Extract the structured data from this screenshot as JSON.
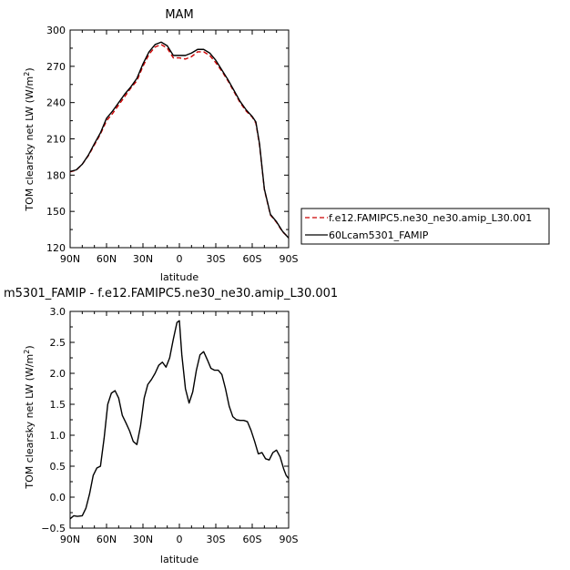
{
  "chart_data": [
    {
      "type": "line",
      "title": "MAM",
      "xlabel": "latitude",
      "ylabel": "TOM clearsky net LW (W/m²)",
      "xlim": [
        90,
        -90
      ],
      "ylim": [
        120,
        300
      ],
      "x_ticks": [
        90,
        60,
        30,
        0,
        -30,
        -60,
        -90
      ],
      "x_tick_labels": [
        "90N",
        "60N",
        "30N",
        "0",
        "30S",
        "60S",
        "90S"
      ],
      "y_ticks": [
        120,
        150,
        180,
        210,
        240,
        270,
        300
      ],
      "y_tick_labels": [
        "120",
        "150",
        "180",
        "210",
        "240",
        "270",
        "300"
      ],
      "grid": false,
      "legend": "right",
      "series": [
        {
          "name": "f.e12.FAMIPC5.ne30_ne30.amip_L30.001",
          "color": "#cc0000",
          "style": "dashed",
          "x": [
            90,
            85,
            80,
            75,
            70,
            65,
            60,
            55,
            50,
            45,
            40,
            35,
            30,
            25,
            20,
            15,
            10,
            5,
            0,
            -5,
            -10,
            -15,
            -20,
            -25,
            -30,
            -35,
            -40,
            -45,
            -50,
            -55,
            -60,
            -63,
            -66,
            -70,
            -75,
            -80,
            -85,
            -90
          ],
          "values": [
            182.7,
            184,
            189,
            196,
            205,
            214,
            225,
            231,
            238,
            245,
            252,
            258,
            270,
            280,
            286,
            288,
            285,
            277,
            277,
            276,
            278,
            282,
            282,
            279,
            273,
            266,
            258,
            249,
            240,
            233,
            228,
            223,
            205,
            168,
            147,
            141,
            133,
            128.5
          ]
        },
        {
          "name": "60Lcam5301_FAMIP",
          "color": "#000000",
          "style": "solid",
          "x": [
            90,
            85,
            80,
            75,
            70,
            65,
            60,
            55,
            50,
            45,
            40,
            35,
            30,
            25,
            20,
            15,
            10,
            5,
            0,
            -5,
            -10,
            -15,
            -20,
            -25,
            -30,
            -35,
            -40,
            -45,
            -50,
            -55,
            -60,
            -63,
            -66,
            -70,
            -75,
            -80,
            -85,
            -90
          ],
          "values": [
            183,
            184.3,
            189,
            196.5,
            206,
            215,
            227,
            233,
            240,
            247,
            253,
            260,
            272,
            282,
            288,
            290,
            287,
            279,
            279,
            279,
            281,
            284,
            284,
            281,
            275,
            267,
            259,
            250,
            241,
            234,
            228.5,
            224,
            206,
            168.5,
            147.5,
            141.5,
            133.5,
            128
          ]
        }
      ]
    },
    {
      "type": "line",
      "title": "m5301_FAMIP - f.e12.FAMIPC5.ne30_ne30.amip_L30.001",
      "xlabel": "latitude",
      "ylabel": "TOM clearsky net LW (W/m²)",
      "xlim": [
        90,
        -90
      ],
      "ylim": [
        -0.5,
        3.0
      ],
      "x_ticks": [
        90,
        60,
        30,
        0,
        -30,
        -60,
        -90
      ],
      "x_tick_labels": [
        "90N",
        "60N",
        "30N",
        "0",
        "30S",
        "60S",
        "90S"
      ],
      "y_ticks": [
        -0.5,
        0.0,
        0.5,
        1.0,
        1.5,
        2.0,
        2.5,
        3.0
      ],
      "y_tick_labels": [
        "−0.5",
        "0.0",
        "0.5",
        "1.0",
        "1.5",
        "2.0",
        "2.5",
        "3.0"
      ],
      "grid": false,
      "series": [
        {
          "color": "#000000",
          "style": "solid",
          "x": [
            90,
            87,
            84,
            80,
            77,
            74,
            71,
            68,
            65,
            62,
            59,
            56,
            53,
            50,
            47,
            44,
            41,
            38,
            35,
            32,
            29,
            26,
            23,
            20,
            17,
            14,
            11,
            8,
            5,
            2,
            0,
            -2,
            -5,
            -8,
            -11,
            -14,
            -17,
            -20,
            -23,
            -26,
            -29,
            -32,
            -35,
            -38,
            -41,
            -44,
            -47,
            -50,
            -53,
            -56,
            -59,
            -62,
            -65,
            -68,
            -71,
            -74,
            -77,
            -80,
            -83,
            -86,
            -88,
            -90
          ],
          "values": [
            -0.35,
            -0.3,
            -0.31,
            -0.3,
            -0.18,
            0.05,
            0.35,
            0.47,
            0.5,
            0.95,
            1.5,
            1.68,
            1.72,
            1.6,
            1.32,
            1.2,
            1.07,
            0.9,
            0.85,
            1.15,
            1.6,
            1.82,
            1.9,
            2.0,
            2.13,
            2.18,
            2.1,
            2.25,
            2.55,
            2.82,
            2.85,
            2.3,
            1.75,
            1.52,
            1.7,
            2.05,
            2.3,
            2.35,
            2.22,
            2.08,
            2.05,
            2.05,
            1.98,
            1.75,
            1.47,
            1.3,
            1.25,
            1.24,
            1.24,
            1.22,
            1.08,
            0.9,
            0.7,
            0.72,
            0.62,
            0.6,
            0.72,
            0.76,
            0.65,
            0.45,
            0.35,
            0.3
          ]
        }
      ]
    }
  ]
}
